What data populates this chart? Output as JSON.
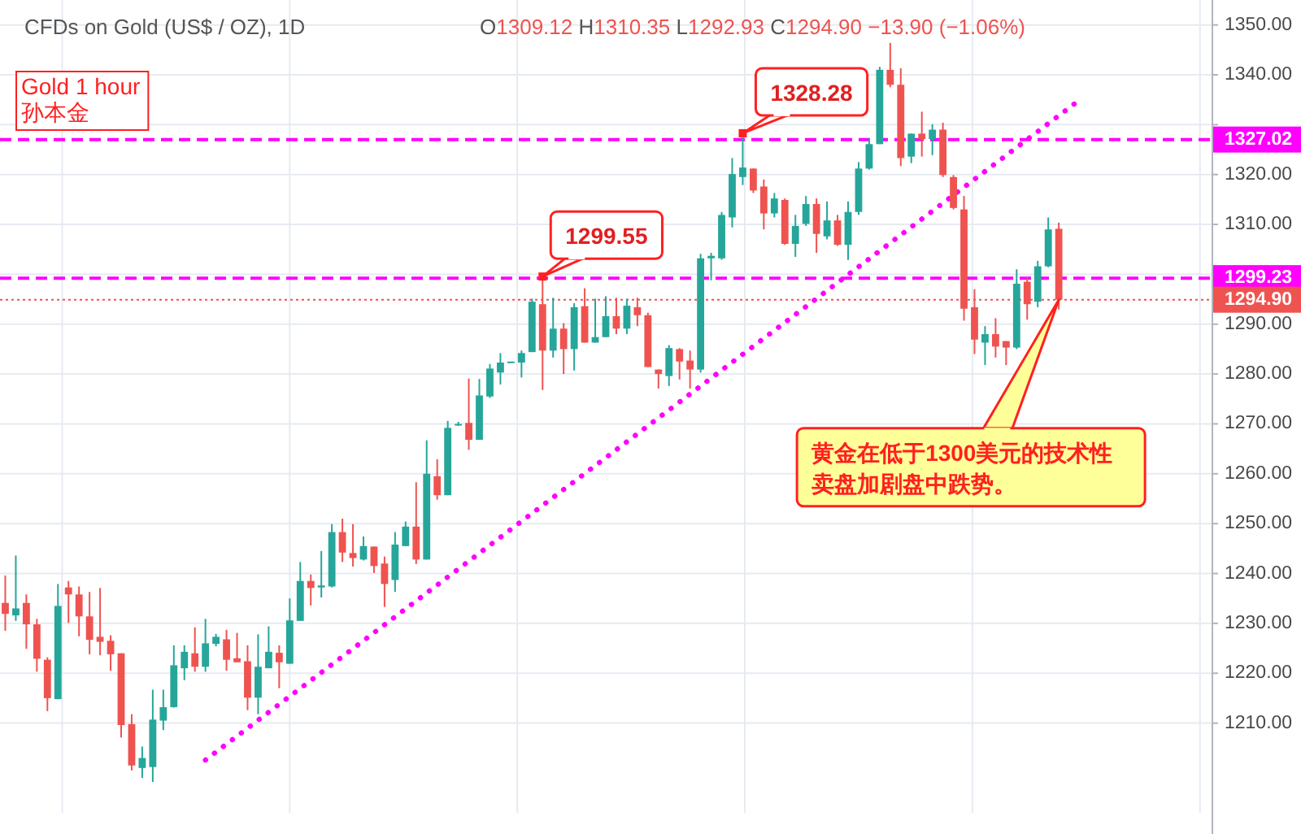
{
  "chart_data": {
    "type": "candlestick",
    "title": "CFDs on Gold (US$ / OZ), 1D",
    "subtitle": "O1309.12  H1310.35  L1292.93  C1294.90  −13.90 (−1.06%)",
    "categories": [
      null,
      null,
      null,
      null,
      null,
      null,
      null,
      null,
      null,
      null,
      null,
      null,
      null,
      null,
      null,
      null,
      null,
      null,
      null,
      null,
      null,
      null,
      null,
      null,
      null,
      null,
      null,
      null,
      null,
      null,
      null,
      null,
      null,
      null,
      null,
      null,
      null,
      null,
      null,
      null,
      null,
      null,
      null,
      null,
      null,
      null,
      null,
      null,
      null,
      null,
      null,
      null,
      null,
      null,
      null,
      null,
      null,
      null,
      null,
      null,
      null,
      null,
      null,
      null,
      null,
      null,
      null,
      null,
      null,
      null,
      null,
      null,
      null,
      null,
      null,
      null,
      null,
      null,
      null,
      null,
      null,
      null,
      null,
      null,
      null,
      null,
      null,
      null,
      null,
      null,
      null,
      null,
      null,
      null,
      null,
      null,
      null,
      null,
      null,
      null,
      null,
      null,
      null,
      null,
      null,
      null,
      null,
      null,
      null,
      null,
      null,
      null,
      null,
      null,
      null
    ],
    "ohlc": [
      [
        1234.1,
        1239.6,
        1228.5,
        1231.9
      ],
      [
        1231.6,
        1243.6,
        1230.5,
        1233.0
      ],
      [
        1234.1,
        1235.8,
        1224.9,
        1229.8
      ],
      [
        1229.8,
        1230.9,
        1220.3,
        1222.9
      ],
      [
        1222.7,
        1223.2,
        1212.4,
        1215.0
      ],
      [
        1214.8,
        1237.9,
        1214.8,
        1233.5
      ],
      [
        1237.2,
        1238.5,
        1230.1,
        1235.8
      ],
      [
        1235.8,
        1237.4,
        1227.4,
        1231.4
      ],
      [
        1231.4,
        1236.3,
        1223.8,
        1226.7
      ],
      [
        1227.3,
        1237.1,
        1223.6,
        1226.3
      ],
      [
        1226.5,
        1227.6,
        1220.5,
        1223.8
      ],
      [
        1224.0,
        1224.0,
        1207.1,
        1209.6
      ],
      [
        1209.8,
        1211.8,
        1200.5,
        1201.5
      ],
      [
        1201.0,
        1205.3,
        1199.0,
        1203.0
      ],
      [
        1201.2,
        1216.7,
        1198.2,
        1210.7
      ],
      [
        1210.5,
        1216.7,
        1208.6,
        1213.2
      ],
      [
        1213.2,
        1225.6,
        1213.1,
        1221.6
      ],
      [
        1221.0,
        1225.6,
        1218.6,
        1224.3
      ],
      [
        1224.0,
        1229.2,
        1220.3,
        1221.3
      ],
      [
        1221.3,
        1230.9,
        1220.3,
        1226.0
      ],
      [
        1225.9,
        1227.9,
        1225.4,
        1227.3
      ],
      [
        1226.8,
        1228.7,
        1220.5,
        1222.7
      ],
      [
        1223.0,
        1228.1,
        1222.2,
        1222.2
      ],
      [
        1222.4,
        1225.6,
        1212.6,
        1215.1
      ],
      [
        1215.1,
        1227.8,
        1211.8,
        1221.3
      ],
      [
        1221.0,
        1229.4,
        1221.0,
        1224.3
      ],
      [
        1224.1,
        1225.6,
        1217.0,
        1222.2
      ],
      [
        1221.9,
        1235.0,
        1221.9,
        1230.6
      ],
      [
        1230.5,
        1242.3,
        1230.5,
        1238.5
      ],
      [
        1238.5,
        1239.8,
        1233.6,
        1237.1
      ],
      [
        1237.2,
        1244.5,
        1235.2,
        1237.6
      ],
      [
        1237.4,
        1249.9,
        1237.2,
        1248.3
      ],
      [
        1248.3,
        1251.0,
        1242.3,
        1244.2
      ],
      [
        1244.1,
        1249.9,
        1241.4,
        1243.1
      ],
      [
        1242.8,
        1247.4,
        1242.6,
        1245.5
      ],
      [
        1245.4,
        1245.4,
        1240.1,
        1241.5
      ],
      [
        1242.0,
        1243.4,
        1233.3,
        1237.9
      ],
      [
        1238.7,
        1248.3,
        1236.3,
        1245.8
      ],
      [
        1245.5,
        1250.4,
        1245.5,
        1249.4
      ],
      [
        1249.4,
        1258.3,
        1241.9,
        1242.8
      ],
      [
        1242.8,
        1266.7,
        1242.8,
        1260.0
      ],
      [
        1259.5,
        1262.9,
        1254.8,
        1255.7
      ],
      [
        1255.7,
        1270.6,
        1255.7,
        1269.2
      ],
      [
        1269.8,
        1270.4,
        1269.6,
        1270.0
      ],
      [
        1270.2,
        1279.1,
        1264.8,
        1266.8
      ],
      [
        1266.8,
        1279.0,
        1266.8,
        1275.7
      ],
      [
        1275.5,
        1282.0,
        1275.2,
        1281.1
      ],
      [
        1280.3,
        1284.2,
        1277.9,
        1282.3
      ],
      [
        1282.3,
        1282.5,
        1282.3,
        1282.5
      ],
      [
        1282.3,
        1284.7,
        1279.3,
        1284.2
      ],
      [
        1284.4,
        1295.1,
        1284.4,
        1294.5
      ],
      [
        1294.0,
        1299.55,
        1276.8,
        1284.7
      ],
      [
        1284.7,
        1295.3,
        1283.3,
        1289.1
      ],
      [
        1289.1,
        1290.2,
        1280.0,
        1285.0
      ],
      [
        1285.0,
        1294.2,
        1280.7,
        1293.4
      ],
      [
        1293.6,
        1297.2,
        1286.3,
        1286.3
      ],
      [
        1286.3,
        1295.1,
        1286.3,
        1287.4
      ],
      [
        1287.4,
        1295.6,
        1287.4,
        1291.6
      ],
      [
        1291.6,
        1295.3,
        1288.0,
        1289.1
      ],
      [
        1289.1,
        1295.1,
        1288.0,
        1293.7
      ],
      [
        1293.4,
        1295.3,
        1289.6,
        1291.8
      ],
      [
        1291.8,
        1292.3,
        1281.4,
        1281.4
      ],
      [
        1280.9,
        1280.9,
        1277.1,
        1280.0
      ],
      [
        1279.6,
        1285.8,
        1277.6,
        1285.2
      ],
      [
        1285.0,
        1285.2,
        1278.9,
        1282.5
      ],
      [
        1282.7,
        1284.7,
        1277.1,
        1280.9
      ],
      [
        1280.9,
        1304.1,
        1280.3,
        1303.2
      ],
      [
        1303.2,
        1304.3,
        1298.8,
        1303.7
      ],
      [
        1303.2,
        1312.5,
        1302.9,
        1311.9
      ],
      [
        1311.4,
        1323.3,
        1309.4,
        1320.1
      ],
      [
        1319.5,
        1328.28,
        1317.9,
        1321.4
      ],
      [
        1321.2,
        1321.2,
        1316.3,
        1316.8
      ],
      [
        1317.6,
        1319.0,
        1309.0,
        1312.2
      ],
      [
        1312.2,
        1316.3,
        1311.4,
        1315.2
      ],
      [
        1314.9,
        1315.2,
        1305.9,
        1306.1
      ],
      [
        1306.1,
        1311.9,
        1303.5,
        1309.7
      ],
      [
        1310.1,
        1315.7,
        1309.7,
        1314.1
      ],
      [
        1314.1,
        1315.2,
        1304.3,
        1308.1
      ],
      [
        1307.6,
        1314.6,
        1307.0,
        1310.8
      ],
      [
        1310.8,
        1311.9,
        1305.7,
        1305.9
      ],
      [
        1305.9,
        1314.6,
        1302.9,
        1312.5
      ],
      [
        1312.5,
        1322.5,
        1311.9,
        1321.2
      ],
      [
        1321.2,
        1327.2,
        1321.0,
        1326.1
      ],
      [
        1326.1,
        1341.6,
        1326.1,
        1341.0
      ],
      [
        1341.0,
        1346.4,
        1337.5,
        1338.0
      ],
      [
        1338.0,
        1341.3,
        1321.7,
        1323.3
      ],
      [
        1323.6,
        1328.2,
        1322.3,
        1328.2
      ],
      [
        1328.2,
        1332.6,
        1323.6,
        1327.1
      ],
      [
        1327.1,
        1330.1,
        1323.9,
        1329.0
      ],
      [
        1329.0,
        1330.4,
        1319.5,
        1319.9
      ],
      [
        1319.5,
        1319.9,
        1313.0,
        1313.3
      ],
      [
        1313.0,
        1315.7,
        1290.7,
        1293.1
      ],
      [
        1293.4,
        1297.0,
        1284.0,
        1286.9
      ],
      [
        1286.3,
        1289.6,
        1281.8,
        1288.0
      ],
      [
        1288.0,
        1291.2,
        1283.3,
        1285.5
      ],
      [
        1286.6,
        1286.6,
        1281.8,
        1285.3
      ],
      [
        1285.3,
        1301.0,
        1285.0,
        1298.1
      ],
      [
        1298.5,
        1299.4,
        1290.9,
        1294.0
      ],
      [
        1294.5,
        1302.7,
        1293.4,
        1301.6
      ],
      [
        1301.6,
        1311.4,
        1301.4,
        1309.0
      ],
      [
        1309.12,
        1310.35,
        1292.93,
        1294.9
      ],
      null,
      null,
      null,
      null,
      null,
      null,
      null,
      null,
      null,
      null,
      null,
      null,
      null,
      null
    ],
    "colors": [
      "#ef5350",
      "#26a69a",
      "#ef5350",
      "#ef5350",
      "#ef5350",
      "#26a69a",
      "#ef5350",
      "#ef5350",
      "#ef5350",
      "#ef5350",
      "#ef5350",
      "#ef5350",
      "#ef5350",
      "#26a69a",
      "#26a69a",
      "#26a69a",
      "#26a69a",
      "#26a69a",
      "#ef5350",
      "#26a69a",
      "#26a69a",
      "#ef5350",
      "#ef5350",
      "#ef5350",
      "#26a69a",
      "#26a69a",
      "#ef5350",
      "#26a69a",
      "#26a69a",
      "#ef5350",
      "#26a69a",
      "#26a69a",
      "#ef5350",
      "#ef5350",
      "#26a69a",
      "#ef5350",
      "#ef5350",
      "#26a69a",
      "#26a69a",
      "#ef5350",
      "#26a69a",
      "#ef5350",
      "#26a69a",
      "#26a69a",
      "#ef5350",
      "#26a69a",
      "#26a69a",
      "#26a69a",
      "#26a69a",
      "#26a69a",
      "#26a69a",
      "#ef5350",
      "#26a69a",
      "#ef5350",
      "#26a69a",
      "#ef5350",
      "#26a69a",
      "#26a69a",
      "#ef5350",
      "#26a69a",
      "#ef5350",
      "#ef5350",
      "#ef5350",
      "#26a69a",
      "#ef5350",
      "#ef5350",
      "#26a69a",
      "#26a69a",
      "#26a69a",
      "#26a69a",
      "#26a69a",
      "#ef5350",
      "#ef5350",
      "#26a69a",
      "#ef5350",
      "#26a69a",
      "#26a69a",
      "#ef5350",
      "#26a69a",
      "#ef5350",
      "#26a69a",
      "#26a69a",
      "#26a69a",
      "#26a69a",
      "#ef5350",
      "#ef5350",
      "#26a69a",
      "#ef5350",
      "#26a69a",
      "#ef5350",
      "#ef5350",
      "#ef5350",
      "#ef5350",
      "#26a69a",
      "#ef5350",
      "#ef5350",
      "#26a69a",
      "#ef5350",
      "#26a69a",
      "#26a69a",
      "#ef5350",
      null,
      null,
      null,
      null,
      null,
      null,
      null,
      null,
      null,
      null,
      null,
      null,
      null,
      null
    ],
    "series": [
      {
        "type": "line",
        "values": [
          null,
          null,
          null,
          null,
          null,
          null,
          null,
          null,
          null,
          null,
          null,
          null,
          null,
          null,
          null,
          null,
          null,
          null,
          null,
          1202.6,
          null,
          null,
          null,
          null,
          null,
          null,
          null,
          null,
          null,
          null,
          null,
          null,
          null,
          null,
          null,
          null,
          null,
          null,
          null,
          null,
          null,
          null,
          null,
          null,
          null,
          null,
          null,
          null,
          null,
          null,
          null,
          null,
          null,
          null,
          null,
          null,
          null,
          null,
          null,
          null,
          null,
          null,
          null,
          null,
          null,
          null,
          null,
          null,
          null,
          null,
          null,
          null,
          null,
          null,
          null,
          null,
          null,
          null,
          null,
          null,
          null,
          null,
          null,
          null,
          null,
          null,
          null,
          null,
          null,
          null,
          null,
          null,
          null,
          null,
          null,
          null,
          null,
          null,
          null,
          null,
          null,
          null,
          1335.0,
          null,
          null,
          null,
          null,
          null,
          null,
          null,
          null,
          null,
          null,
          null,
          null
        ],
        "color": "#ff00ff",
        "line_style": "dotted"
      }
    ],
    "ref_lines": [
      {
        "axis": "y",
        "value": 1327.02,
        "label": "1327.02",
        "color": "#ff00ff",
        "line_style": "dashed"
      },
      {
        "axis": "y",
        "value": 1299.23,
        "label": "1299.23",
        "color": "#ff00ff",
        "line_style": "dashed"
      },
      {
        "axis": "y",
        "value": 1294.9,
        "label": "1294.90",
        "color": "#ef5350",
        "line_style": "dotted"
      }
    ],
    "annotations": [
      "Gold 1 hour",
      "孙本金",
      {
        "text": "1299.55",
        "y": 1299.55
      },
      {
        "text": "1328.28",
        "y": 1328.28
      },
      "黄金在低于1300美元的技术性卖盘加剧盘中跌势。"
    ],
    "ylim": [
      1192,
      1355
    ],
    "yticks": [
      {
        "value": 1210,
        "label": "1210.00"
      },
      {
        "value": 1220,
        "label": "1220.00"
      },
      {
        "value": 1230,
        "label": "1230.00"
      },
      {
        "value": 1240,
        "label": "1240.00"
      },
      {
        "value": 1250,
        "label": "1250.00"
      },
      {
        "value": 1260,
        "label": "1260.00"
      },
      {
        "value": 1270,
        "label": "1270.00"
      },
      {
        "value": 1280,
        "label": "1280.00"
      },
      {
        "value": 1290,
        "label": "1290.00"
      },
      {
        "value": 1300,
        "label": null
      },
      {
        "value": 1310,
        "label": "1310.00"
      },
      {
        "value": 1320,
        "label": "1320.00"
      },
      {
        "value": 1330,
        "label": null
      },
      {
        "value": 1340,
        "label": "1340.00"
      },
      {
        "value": 1350,
        "label": "1350.00"
      }
    ],
    "grid": true
  }
}
